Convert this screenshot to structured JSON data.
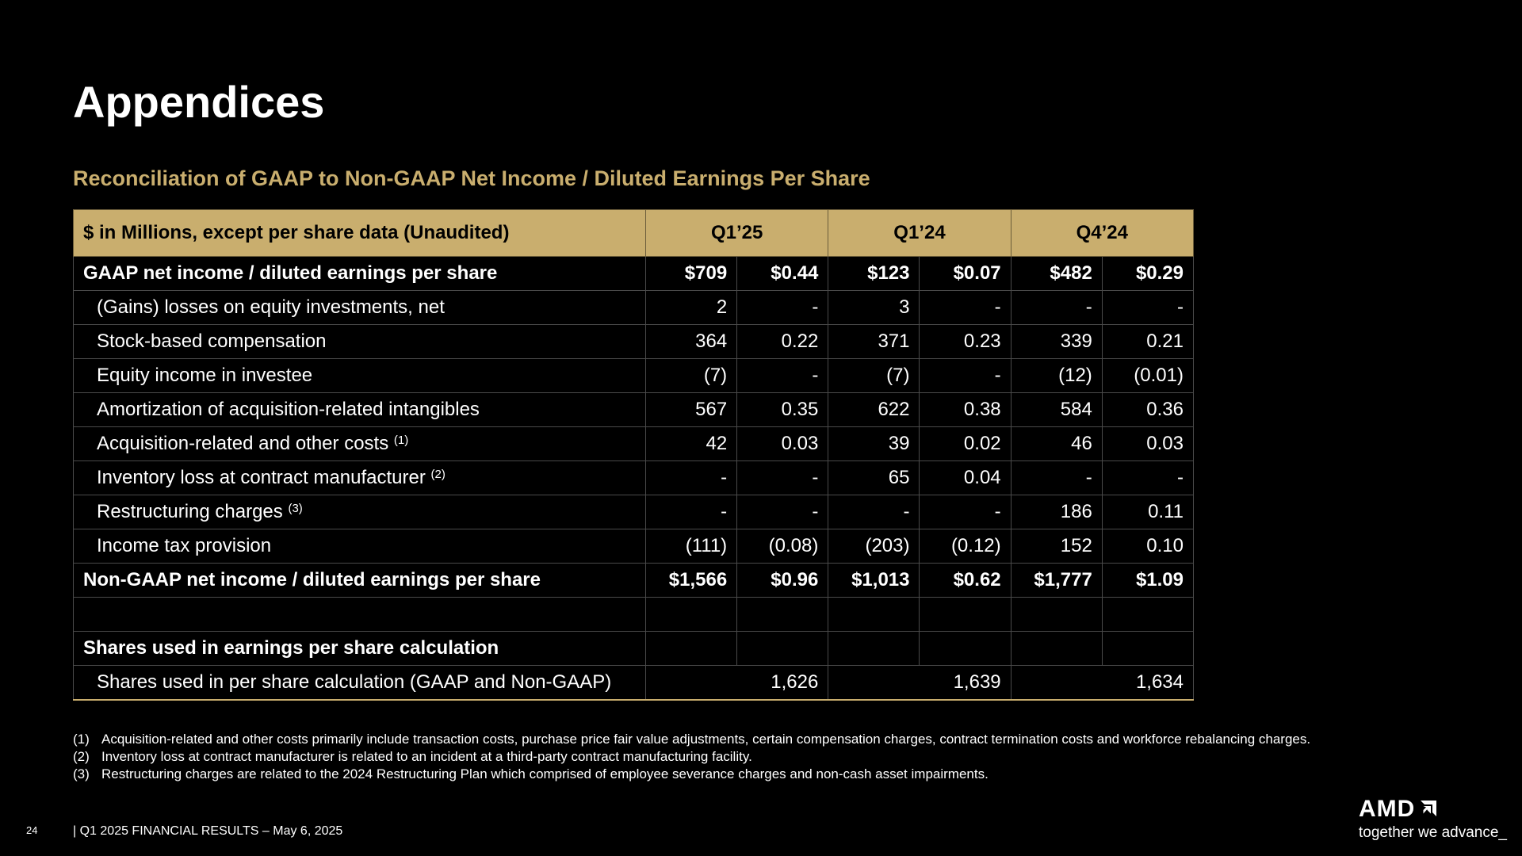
{
  "slide": {
    "title": "Appendices",
    "subtitle": "Reconciliation of GAAP to Non-GAAP Net Income / Diluted Earnings Per Share",
    "page_number": "24",
    "footer": "|  Q1 2025 FINANCIAL RESULTS – May 6, 2025"
  },
  "table": {
    "header_label": "$ in Millions, except per share data (Unaudited)",
    "periods": [
      "Q1’25",
      "Q1’24",
      "Q4’24"
    ],
    "rows": [
      {
        "label": "GAAP net income / diluted earnings per share",
        "sup": "",
        "values": [
          "$709",
          "$0.44",
          "$123",
          "$0.07",
          "$482",
          "$0.29"
        ]
      },
      {
        "label": "(Gains) losses on equity investments, net",
        "sup": "",
        "values": [
          "2",
          "-",
          "3",
          "-",
          "-",
          "-"
        ]
      },
      {
        "label": "Stock-based compensation",
        "sup": "",
        "values": [
          "364",
          "0.22",
          "371",
          "0.23",
          "339",
          "0.21"
        ]
      },
      {
        "label": "Equity income in investee",
        "sup": "",
        "values": [
          "(7)",
          "-",
          "(7)",
          "-",
          "(12)",
          "(0.01)"
        ]
      },
      {
        "label": "Amortization of acquisition-related intangibles",
        "sup": "",
        "values": [
          "567",
          "0.35",
          "622",
          "0.38",
          "584",
          "0.36"
        ]
      },
      {
        "label": "Acquisition-related and other costs",
        "sup": "(1)",
        "values": [
          "42",
          "0.03",
          "39",
          "0.02",
          "46",
          "0.03"
        ]
      },
      {
        "label": "Inventory loss at contract manufacturer",
        "sup": "(2)",
        "values": [
          "-",
          "-",
          "65",
          "0.04",
          "-",
          "-"
        ]
      },
      {
        "label": "Restructuring charges",
        "sup": "(3)",
        "values": [
          "-",
          "-",
          "-",
          "-",
          "186",
          "0.11"
        ]
      },
      {
        "label": "Income tax provision",
        "sup": "",
        "values": [
          "(111)",
          "(0.08)",
          "(203)",
          "(0.12)",
          "152",
          "0.10"
        ]
      },
      {
        "label": "Non-GAAP net income / diluted earnings per share",
        "sup": "",
        "values": [
          "$1,566",
          "$0.96",
          "$1,013",
          "$0.62",
          "$1,777",
          "$1.09"
        ]
      }
    ],
    "shares_heading": "Shares used in earnings per share calculation",
    "shares_row": {
      "label": "Shares used in per share calculation (GAAP and Non-GAAP)",
      "values": [
        "1,626",
        "1,639",
        "1,634"
      ]
    }
  },
  "footnotes": [
    {
      "num": "(1)",
      "text": "Acquisition-related and other costs primarily include transaction costs, purchase price fair value adjustments, certain compensation charges, contract termination costs and workforce rebalancing charges."
    },
    {
      "num": "(2)",
      "text": "Inventory loss at contract manufacturer is related to an incident at a third-party contract manufacturing facility."
    },
    {
      "num": "(3)",
      "text": "Restructuring charges are related to the 2024 Restructuring Plan which comprised of employee severance charges and non-cash asset impairments."
    }
  ],
  "brand": {
    "logo_text": "AMD",
    "tagline": "together we advance_",
    "logo_icon": "amd-arrow-icon"
  },
  "colors": {
    "accent": "#c9ae6e",
    "background": "#000000",
    "text": "#ffffff"
  }
}
